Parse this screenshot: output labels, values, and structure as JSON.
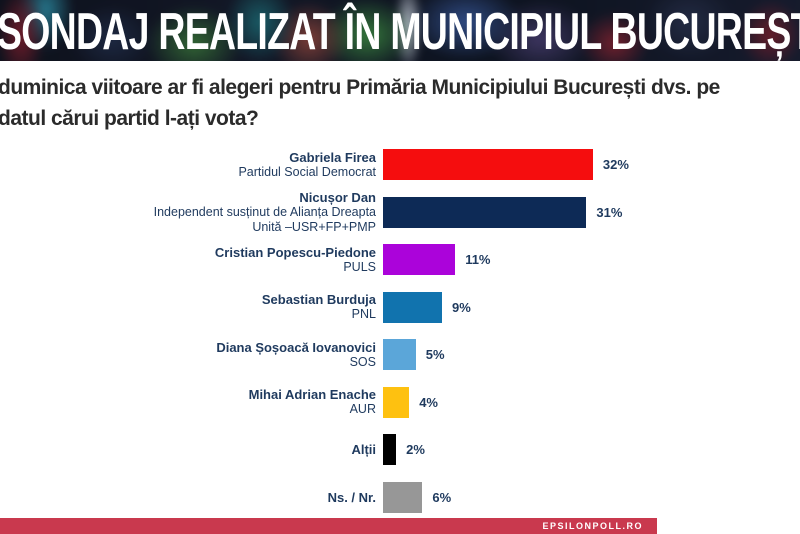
{
  "header": {
    "title": "SONDAJ REALIZAT ÎN MUNICIPIUL BUCUREȘTI"
  },
  "question": {
    "line1": "duminica viitoare ar fi alegeri pentru Primăria Municipiului București dvs. pe",
    "line2": "datul cărui partid l-ați vota?"
  },
  "chart_data": {
    "type": "bar",
    "orientation": "horizontal",
    "unit": "percent",
    "value_range": [
      0,
      32
    ],
    "text_color": "#1f3a5e",
    "rows": [
      {
        "name": "Gabriela Firea",
        "party": "Partidul Social Democrat",
        "value": 32,
        "label": "32%",
        "color": "#f50d0e"
      },
      {
        "name": "Nicușor Dan",
        "party": "Independent susținut de Alianța Dreapta\nUnită –USR+FP+PMP",
        "value": 31,
        "label": "31%",
        "color": "#0d2a56"
      },
      {
        "name": "Cristian Popescu-Piedone",
        "party": "PULS",
        "value": 11,
        "label": "11%",
        "color": "#ab03da"
      },
      {
        "name": "Sebastian Burduja",
        "party": "PNL",
        "value": 9,
        "label": "9%",
        "color": "#1173ae"
      },
      {
        "name": "Diana Șoșoacă Iovanovici",
        "party": "SOS",
        "value": 5,
        "label": "5%",
        "color": "#5ba6d9"
      },
      {
        "name": "Mihai Adrian Enache",
        "party": "AUR",
        "value": 4,
        "label": "4%",
        "color": "#fec110"
      },
      {
        "name": "Alții",
        "party": "",
        "value": 2,
        "label": "2%",
        "color": "#000000"
      },
      {
        "name": "Ns. / Nr.",
        "party": "",
        "value": 6,
        "label": "6%",
        "color": "#979797"
      }
    ]
  },
  "footer": {
    "brand": "EPSILONPOLL.RO",
    "bar_color": "#c9394e",
    "text_color": "#ffffff"
  }
}
